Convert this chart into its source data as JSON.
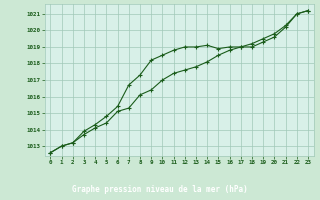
{
  "title": "Graphe pression niveau de la mer (hPa)",
  "bg_color": "#cce8d4",
  "plot_bg_color": "#d8f0e8",
  "grid_color": "#a0c8b8",
  "line_color": "#1a5c1a",
  "label_bg_color": "#4a8a4a",
  "label_text_color": "#ffffff",
  "xlim_min": -0.5,
  "xlim_max": 23.5,
  "ylim_min": 1012.4,
  "ylim_max": 1021.6,
  "yticks": [
    1013,
    1014,
    1015,
    1016,
    1017,
    1018,
    1019,
    1020,
    1021
  ],
  "xticks": [
    0,
    1,
    2,
    3,
    4,
    5,
    6,
    7,
    8,
    9,
    10,
    11,
    12,
    13,
    14,
    15,
    16,
    17,
    18,
    19,
    20,
    21,
    22,
    23
  ],
  "series1_x": [
    0,
    1,
    2,
    3,
    4,
    5,
    6,
    7,
    8,
    9,
    10,
    11,
    12,
    13,
    14,
    15,
    16,
    17,
    18,
    19,
    20,
    21,
    22,
    23
  ],
  "series1_y": [
    1012.6,
    1013.0,
    1013.2,
    1013.7,
    1014.1,
    1014.4,
    1015.1,
    1015.3,
    1016.1,
    1016.4,
    1017.0,
    1017.4,
    1017.6,
    1017.8,
    1018.1,
    1018.5,
    1018.8,
    1019.0,
    1019.2,
    1019.5,
    1019.8,
    1020.3,
    1021.0,
    1021.2
  ],
  "series2_x": [
    0,
    1,
    2,
    3,
    4,
    5,
    6,
    7,
    8,
    9,
    10,
    11,
    12,
    13,
    14,
    15,
    16,
    17,
    18,
    19,
    20,
    21,
    22,
    23
  ],
  "series2_y": [
    1012.6,
    1013.0,
    1013.2,
    1013.9,
    1014.3,
    1014.8,
    1015.4,
    1016.7,
    1017.3,
    1018.2,
    1018.5,
    1018.8,
    1019.0,
    1019.0,
    1019.1,
    1018.9,
    1019.0,
    1019.0,
    1019.0,
    1019.3,
    1019.6,
    1020.2,
    1021.0,
    1021.2
  ]
}
